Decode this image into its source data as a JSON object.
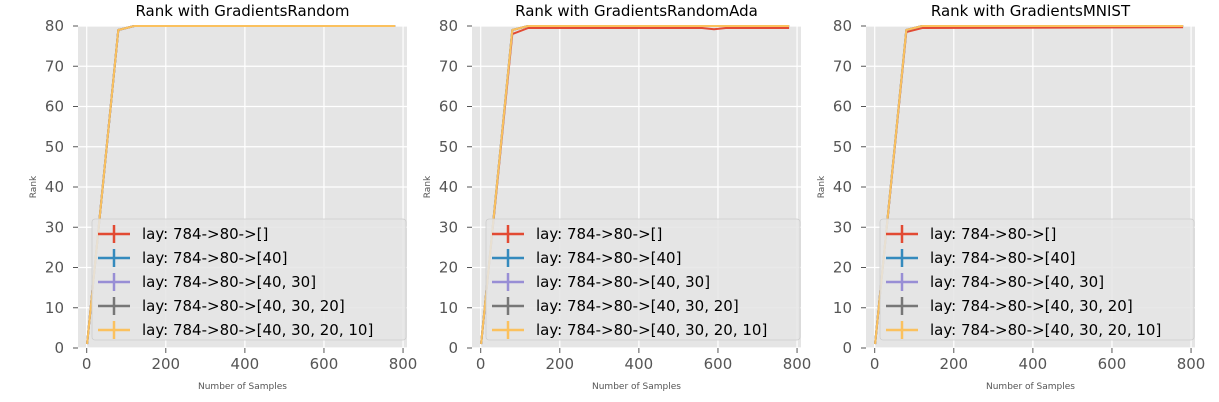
{
  "chart_data": [
    {
      "type": "line",
      "title": "Rank with GradientsRandom",
      "xlabel": "Number of Samples",
      "ylabel": "Rank",
      "xlim": [
        -22,
        810
      ],
      "ylim": [
        0,
        80
      ],
      "xticks": [
        0,
        200,
        400,
        600,
        800
      ],
      "yticks": [
        0,
        10,
        20,
        30,
        40,
        50,
        60,
        70,
        80
      ],
      "grid": true,
      "legend": "lower-center",
      "series": [
        {
          "name": "lay: 784->80->[]",
          "x": [
            1,
            80,
            120,
            780
          ],
          "y": [
            1,
            79,
            80,
            80
          ]
        },
        {
          "name": "lay: 784->80->[40]",
          "x": [
            1,
            80,
            120,
            780
          ],
          "y": [
            1,
            79,
            80,
            80
          ]
        },
        {
          "name": "lay: 784->80->[40, 30]",
          "x": [
            1,
            80,
            120,
            780
          ],
          "y": [
            1,
            79,
            80,
            80
          ]
        },
        {
          "name": "lay: 784->80->[40, 30, 20]",
          "x": [
            1,
            80,
            120,
            780
          ],
          "y": [
            1,
            79,
            80,
            80
          ]
        },
        {
          "name": "lay: 784->80->[40, 30, 20, 10]",
          "x": [
            1,
            80,
            120,
            780
          ],
          "y": [
            1,
            79,
            80,
            80
          ]
        }
      ]
    },
    {
      "type": "line",
      "title": "Rank with GradientsRandomAda",
      "xlabel": "Number of Samples",
      "ylabel": "Rank",
      "xlim": [
        -22,
        810
      ],
      "ylim": [
        0,
        80
      ],
      "xticks": [
        0,
        200,
        400,
        600,
        800
      ],
      "yticks": [
        0,
        10,
        20,
        30,
        40,
        50,
        60,
        70,
        80
      ],
      "grid": true,
      "legend": "lower-center",
      "series": [
        {
          "name": "lay: 784->80->[]",
          "x": [
            1,
            80,
            120,
            560,
            590,
            620,
            780
          ],
          "y": [
            1,
            78,
            79.5,
            79.5,
            79.2,
            79.5,
            79.5
          ]
        },
        {
          "name": "lay: 784->80->[40]",
          "x": [
            1,
            80,
            120,
            780
          ],
          "y": [
            1,
            79,
            80,
            80
          ]
        },
        {
          "name": "lay: 784->80->[40, 30]",
          "x": [
            1,
            80,
            120,
            780
          ],
          "y": [
            1,
            79,
            80,
            80
          ]
        },
        {
          "name": "lay: 784->80->[40, 30, 20]",
          "x": [
            1,
            80,
            120,
            780
          ],
          "y": [
            1,
            79,
            80,
            80
          ]
        },
        {
          "name": "lay: 784->80->[40, 30, 20, 10]",
          "x": [
            1,
            80,
            120,
            780
          ],
          "y": [
            1,
            79,
            80,
            80
          ]
        }
      ]
    },
    {
      "type": "line",
      "title": "Rank with GradientsMNIST",
      "xlabel": "Number of Samples",
      "ylabel": "Rank",
      "xlim": [
        -22,
        810
      ],
      "ylim": [
        0,
        80
      ],
      "xticks": [
        0,
        200,
        400,
        600,
        800
      ],
      "yticks": [
        0,
        10,
        20,
        30,
        40,
        50,
        60,
        70,
        80
      ],
      "grid": true,
      "legend": "lower-center",
      "series": [
        {
          "name": "lay: 784->80->[]",
          "x": [
            1,
            80,
            120,
            780
          ],
          "y": [
            1,
            78.5,
            79.5,
            79.7
          ]
        },
        {
          "name": "lay: 784->80->[40]",
          "x": [
            1,
            80,
            120,
            780
          ],
          "y": [
            1,
            79,
            80,
            80
          ]
        },
        {
          "name": "lay: 784->80->[40, 30]",
          "x": [
            1,
            80,
            120,
            780
          ],
          "y": [
            1,
            79,
            80,
            80
          ]
        },
        {
          "name": "lay: 784->80->[40, 30, 20]",
          "x": [
            1,
            80,
            120,
            780
          ],
          "y": [
            1,
            79,
            80,
            80
          ]
        },
        {
          "name": "lay: 784->80->[40, 30, 20, 10]",
          "x": [
            1,
            80,
            120,
            780
          ],
          "y": [
            1,
            79,
            80,
            80
          ]
        }
      ]
    }
  ],
  "colors": {
    "plot_background": "#E5E5E5",
    "grid": "#FFFFFF",
    "series": [
      "#E24A33",
      "#348ABD",
      "#988ED5",
      "#777777",
      "#FBC15E"
    ]
  }
}
